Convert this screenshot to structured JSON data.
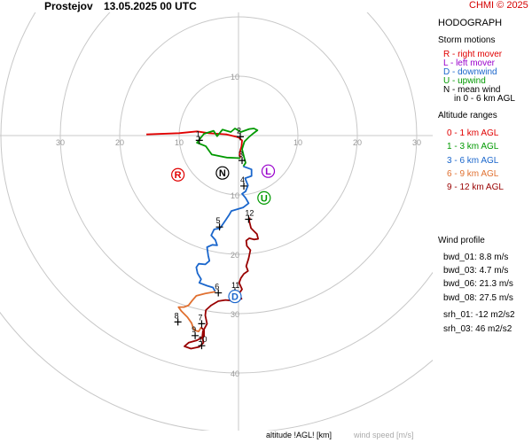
{
  "header": {
    "station": "Prostejov",
    "datetime": "13.05.2025 00 UTC",
    "credit": "CHMI © 2025"
  },
  "panel": {
    "title": "HODOGRAPH",
    "storm_motions_title": "Storm motions",
    "storm_motions": [
      {
        "text": "R - right mover",
        "color": "#e00000"
      },
      {
        "text": "L - left mover",
        "color": "#9900cc"
      },
      {
        "text": "D - downwind",
        "color": "#1a66cc"
      },
      {
        "text": "U - upwind",
        "color": "#009900"
      },
      {
        "text": "N - mean wind",
        "color": "#000000"
      },
      {
        "text": "in 0 - 6 km AGL",
        "color": "#000000"
      }
    ],
    "altitude_title": "Altitude ranges",
    "altitude_ranges": [
      {
        "text": "0 - 1 km AGL",
        "color": "#e00000"
      },
      {
        "text": "1 - 3 km AGL",
        "color": "#009900"
      },
      {
        "text": "3 - 6 km AGL",
        "color": "#1a66cc"
      },
      {
        "text": "6 - 9 km AGL",
        "color": "#e07030"
      },
      {
        "text": "9 - 12 km AGL",
        "color": "#990000"
      }
    ],
    "wind_profile_title": "Wind profile",
    "wind_profile": [
      "bwd_01: 8.8 m/s",
      "bwd_03: 4.7 m/s",
      "bwd_06: 21.3 m/s",
      "bwd_08: 27.5 m/s"
    ],
    "srh": [
      "srh_01: -12 m2/s2",
      "srh_03: 46 m2/s2"
    ]
  },
  "footer": {
    "altitude_label": "altitude !AGL! [km]",
    "speed_label": "wind speed [m/s]"
  },
  "chart_data": {
    "type": "hodograph",
    "units": "m/s",
    "rings": [
      10,
      20,
      30,
      40,
      50
    ],
    "x_axis_labels": [
      "30",
      "20",
      "10",
      "10",
      "20",
      "30"
    ],
    "y_axis_labels": [
      "10",
      "10",
      "20",
      "30",
      "40"
    ],
    "grid": true,
    "segments": [
      {
        "name": "0 - 1 km AGL",
        "color": "#e00000",
        "points": [
          [
            -15.5,
            0.2
          ],
          [
            -10,
            0.4
          ],
          [
            -7,
            0.7
          ],
          [
            -5,
            0.4
          ],
          [
            -2,
            0.2
          ],
          [
            0,
            -0.3
          ],
          [
            0.6,
            -0.8
          ],
          [
            0.5,
            -1.8
          ],
          [
            0.3,
            -2.5
          ],
          [
            0.2,
            -3.2
          ],
          [
            0.3,
            -3.8
          ]
        ]
      },
      {
        "name": "1 - 3 km AGL",
        "color": "#009900",
        "points": [
          [
            0.3,
            -3.8
          ],
          [
            -2,
            -3.7
          ],
          [
            -4.5,
            -3.2
          ],
          [
            -5.5,
            -1.8
          ],
          [
            -7,
            -1.2
          ],
          [
            -5.8,
            0.3
          ],
          [
            -4.2,
            0.8
          ],
          [
            -3.6,
            -0.1
          ],
          [
            -2.7,
            1.0
          ],
          [
            -1.3,
            0.6
          ],
          [
            -0.6,
            1.2
          ],
          [
            0.4,
            0.6
          ],
          [
            1.8,
            1.1
          ],
          [
            2.6,
            1.2
          ],
          [
            3.2,
            0.9
          ],
          [
            2.4,
            0.3
          ],
          [
            1.7,
            -0.3
          ],
          [
            1,
            -1
          ],
          [
            0.6,
            -2.3
          ],
          [
            0.9,
            -3.5
          ],
          [
            1.2,
            -4.6
          ],
          [
            0.8,
            -5.2
          ]
        ]
      },
      {
        "name": "3 - 6 km AGL",
        "color": "#1a66cc",
        "points": [
          [
            0.8,
            -5.2
          ],
          [
            2.2,
            -5.7
          ],
          [
            2.2,
            -6.8
          ],
          [
            1.1,
            -7.2
          ],
          [
            1.6,
            -8.4
          ],
          [
            1.2,
            -9.4
          ],
          [
            0.6,
            -9.8
          ],
          [
            1.2,
            -10.5
          ],
          [
            1.7,
            -11.4
          ],
          [
            0.8,
            -12.1
          ],
          [
            -1.2,
            -12.7
          ],
          [
            -1.6,
            -13.4
          ],
          [
            -2.4,
            -14.6
          ],
          [
            -3.1,
            -15.6
          ],
          [
            -4.1,
            -15.8
          ],
          [
            -4.6,
            -16.8
          ],
          [
            -3.9,
            -17.6
          ],
          [
            -3.6,
            -18.5
          ],
          [
            -4.4,
            -18.4
          ],
          [
            -5.3,
            -18.8
          ],
          [
            -5.1,
            -20.2
          ],
          [
            -4.9,
            -21.1
          ],
          [
            -5.6,
            -21.7
          ],
          [
            -6.7,
            -21.6
          ],
          [
            -7.1,
            -22.2
          ],
          [
            -6.9,
            -23.2
          ],
          [
            -6.3,
            -24.2
          ],
          [
            -6.6,
            -24.8
          ],
          [
            -5.3,
            -25.3
          ],
          [
            -4.3,
            -25.6
          ],
          [
            -3.9,
            -26.3
          ]
        ]
      },
      {
        "name": "6 - 9 km AGL",
        "color": "#e07030",
        "points": [
          [
            -3.9,
            -26.3
          ],
          [
            -5.6,
            -26.6
          ],
          [
            -7.1,
            -27
          ],
          [
            -7.8,
            -27.8
          ],
          [
            -8.4,
            -28.6
          ],
          [
            -9.2,
            -28.9
          ],
          [
            -10.1,
            -28.9
          ],
          [
            -9.6,
            -29.6
          ],
          [
            -8.6,
            -30.6
          ],
          [
            -7.9,
            -31.6
          ],
          [
            -7.7,
            -32.2
          ],
          [
            -7.4,
            -32.8
          ],
          [
            -6.7,
            -33
          ],
          [
            -6.3,
            -32.3
          ]
        ]
      },
      {
        "name": "9 - 12 km AGL",
        "color": "#990000",
        "points": [
          [
            -6.3,
            -32.3
          ],
          [
            -5.8,
            -32.8
          ],
          [
            -5.8,
            -33.8
          ],
          [
            -7,
            -34.5
          ],
          [
            -8.4,
            -34.9
          ],
          [
            -9.1,
            -35.5
          ],
          [
            -8,
            -35.9
          ],
          [
            -6.6,
            -35.6
          ],
          [
            -5.9,
            -34.9
          ],
          [
            -6.1,
            -34
          ],
          [
            -6,
            -33
          ],
          [
            -5.3,
            -31.7
          ],
          [
            -5.6,
            -30.3
          ],
          [
            -5.5,
            -29.4
          ],
          [
            -4.6,
            -28.6
          ],
          [
            -3.4,
            -27.9
          ],
          [
            -2.2,
            -27.7
          ],
          [
            -1.1,
            -27.8
          ],
          [
            0.5,
            -27.5
          ],
          [
            0.1,
            -26.6
          ],
          [
            0.6,
            -25.9
          ],
          [
            0.1,
            -24.8
          ],
          [
            0.4,
            -24
          ],
          [
            0.9,
            -23.3
          ],
          [
            1.6,
            -22.8
          ],
          [
            1.3,
            -22
          ],
          [
            1.7,
            -20.7
          ],
          [
            2,
            -19.3
          ],
          [
            1.4,
            -18.6
          ],
          [
            1.3,
            -17.7
          ],
          [
            1.8,
            -17.3
          ],
          [
            2.6,
            -17.5
          ],
          [
            3.3,
            -17.4
          ],
          [
            3.1,
            -16.6
          ],
          [
            2.6,
            -16.1
          ],
          [
            2.1,
            -15.6
          ],
          [
            1.8,
            -14.4
          ],
          [
            1.9,
            -13.8
          ]
        ]
      }
    ],
    "altitude_marks": [
      {
        "label": "1",
        "x": -6.6,
        "y": -0.8
      },
      {
        "label": "2",
        "x": 0.3,
        "y": -0.2
      },
      {
        "label": "3",
        "x": 0.6,
        "y": -4.2
      },
      {
        "label": "4",
        "x": 0.9,
        "y": -8.5
      },
      {
        "label": "5",
        "x": -3.2,
        "y": -15.4
      },
      {
        "label": "6",
        "x": -3.4,
        "y": -26.5
      },
      {
        "label": "7",
        "x": -6.2,
        "y": -31.7
      },
      {
        "label": "8",
        "x": -10.2,
        "y": -31.4
      },
      {
        "label": "9",
        "x": -7.3,
        "y": -33.7
      },
      {
        "label": "10",
        "x": -6.2,
        "y": -35.4
      },
      {
        "label": "11",
        "x": -0.6,
        "y": -26.3
      },
      {
        "label": "12",
        "x": 1.7,
        "y": -14.1
      }
    ],
    "storm_motions": [
      {
        "label": "R",
        "x": -10.2,
        "y": -6.6,
        "color": "#e00000"
      },
      {
        "label": "N",
        "x": -2.7,
        "y": -6.3,
        "color": "#000000"
      },
      {
        "label": "L",
        "x": 5,
        "y": -6,
        "color": "#9900cc"
      },
      {
        "label": "U",
        "x": 4.3,
        "y": -10.5,
        "color": "#009900"
      },
      {
        "label": "D",
        "x": -0.6,
        "y": -27.1,
        "color": "#1a66cc"
      }
    ]
  }
}
